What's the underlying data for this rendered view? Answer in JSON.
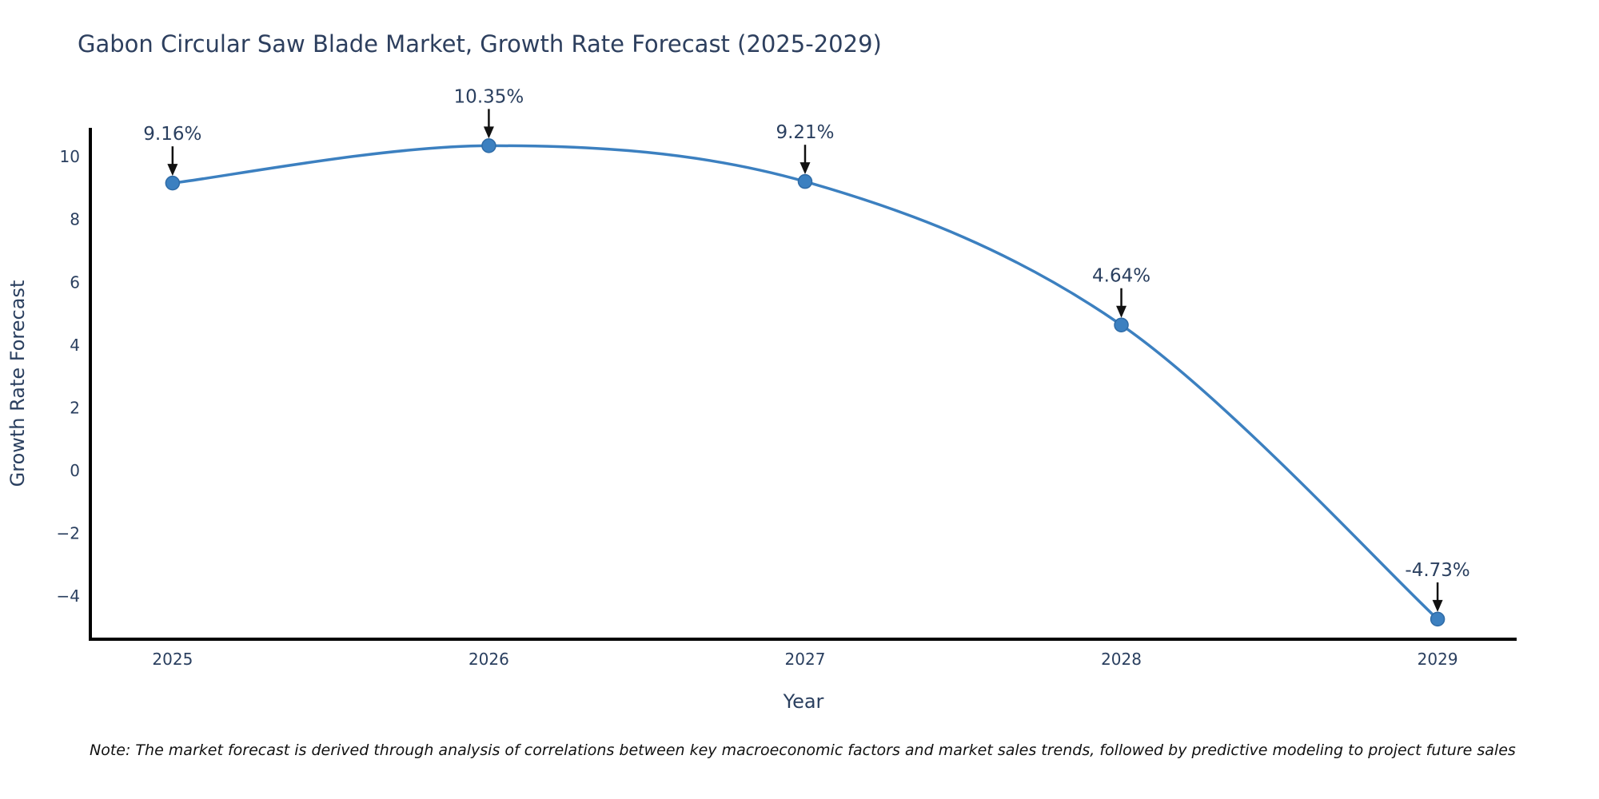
{
  "note": {
    "text": "Note: The market forecast is derived through analysis of correlations between key macroeconomic factors and market sales trends, followed by predictive modeling to project future sales"
  },
  "chart_data": {
    "type": "line",
    "title": "Gabon Circular Saw Blade Market, Growth Rate Forecast (2025-2029)",
    "xlabel": "Year",
    "ylabel": "Growth Rate Forecast",
    "x": [
      2025,
      2026,
      2027,
      2028,
      2029
    ],
    "y": [
      9.16,
      10.35,
      9.21,
      4.64,
      -4.73
    ],
    "point_labels": [
      "9.16%",
      "10.35%",
      "9.21%",
      "4.64%",
      "-4.73%"
    ],
    "xticks": [
      2025,
      2026,
      2027,
      2028,
      2029
    ],
    "yticks": [
      -4,
      -2,
      0,
      2,
      4,
      6,
      8,
      10
    ],
    "xlim": [
      2024.74,
      2029.25
    ],
    "ylim": [
      -5.37,
      10.92
    ],
    "line_shape": "spline",
    "grid": false,
    "legend": "none",
    "colors": {
      "line": "#3c80c0",
      "marker": "#3c80c0",
      "marker_edge": "#2f6ba6",
      "axis": "#000000",
      "text": "#2a3f5f",
      "annotation_text": "#2a3f5f",
      "annotation_arrow": "#111111"
    }
  }
}
